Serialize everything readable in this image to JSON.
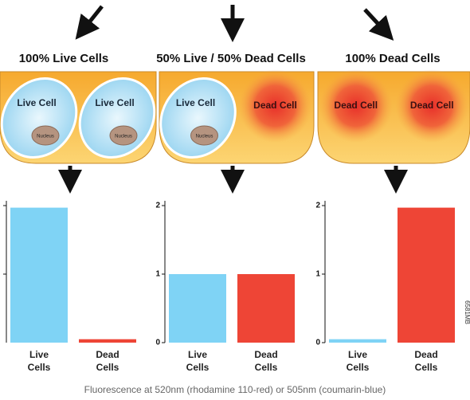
{
  "chart_data": [
    {
      "type": "bar",
      "title": "100% Live Cells",
      "categories": [
        "Live Cells",
        "Dead Cells"
      ],
      "values": [
        1.97,
        0.05
      ],
      "colors": [
        "#7fd3f5",
        "#ee4536"
      ],
      "ylim": [
        0,
        2.07
      ],
      "yticks": [
        1,
        2
      ],
      "tick_labels": false
    },
    {
      "type": "bar",
      "title": "50% Live / 50% Dead Cells",
      "categories": [
        "Live Cells",
        "Dead Cells"
      ],
      "values": [
        1,
        1
      ],
      "colors": [
        "#7fd3f5",
        "#ee4536"
      ],
      "ylim": [
        0,
        2.07
      ],
      "yticks": [
        0,
        1,
        2
      ],
      "tick_labels": true
    },
    {
      "type": "bar",
      "title": "100% Dead Cells",
      "categories": [
        "Live Cells",
        "Dead Cells"
      ],
      "values": [
        0.05,
        1.97
      ],
      "colors": [
        "#7fd3f5",
        "#ee4536"
      ],
      "ylim": [
        0,
        2.07
      ],
      "yticks": [
        0,
        1,
        2
      ],
      "tick_labels": true
    }
  ],
  "wells": [
    {
      "cells": [
        {
          "label": "Live Cell",
          "nucleus": "Nucleus"
        },
        {
          "label": "Live Cell",
          "nucleus": "Nucleus"
        }
      ]
    },
    {
      "cells": [
        {
          "label": "Live Cell",
          "nucleus": "Nucleus"
        },
        {
          "label": "Dead Cell"
        }
      ]
    },
    {
      "cells": [
        {
          "label": "Dead Cell"
        },
        {
          "label": "Dead Cell"
        }
      ]
    }
  ],
  "caption": "Fluorescence at 520nm (rhodamine 110-red) or 505nm (coumarin-blue)",
  "code": "6581MB"
}
